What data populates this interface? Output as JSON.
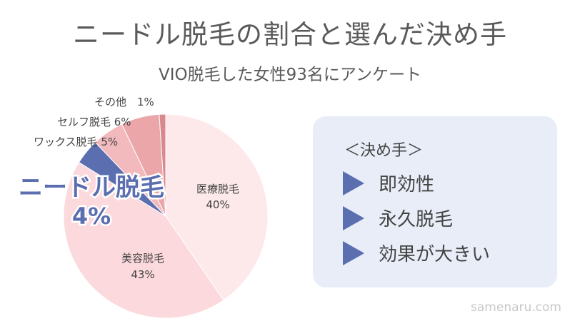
{
  "header": {
    "title": "ニードル脱毛の割合と選んだ決め手",
    "subtitle": "VIO脱毛した女性93名にアンケート"
  },
  "chart_data": {
    "type": "pie",
    "title": "ニードル脱毛の割合と選んだ決め手",
    "subtitle": "VIO脱毛した女性93名にアンケート",
    "slices": [
      {
        "name": "医療脱毛",
        "value": 40,
        "label": "40%",
        "color": "#fde9ea"
      },
      {
        "name": "美容脱毛",
        "value": 43,
        "label": "43%",
        "color": "#fcd9dc"
      },
      {
        "name": "ニードル脱毛",
        "value": 4,
        "label": "4%",
        "color": "#5b6fb0"
      },
      {
        "name": "ワックス脱毛",
        "value": 5,
        "label": "5%",
        "color": "#f3babd"
      },
      {
        "name": "セルフ脱毛",
        "value": 6,
        "label": "6%",
        "color": "#eba6a9"
      },
      {
        "name": "その他",
        "value": 1,
        "label": "1%",
        "color": "#d8898e"
      }
    ],
    "outer_labels": {
      "other": "その他　1%",
      "self": "セルフ脱毛 6%",
      "wax": "ワックス脱毛 5%"
    },
    "highlight": {
      "name": "ニードル脱毛",
      "value": "4%"
    }
  },
  "reasons": {
    "title": "＜決め手＞",
    "items": [
      "即効性",
      "永久脱毛",
      "効果が大きい"
    ]
  },
  "watermark": "samenaru.com",
  "colors": {
    "accent": "#5b6fb0",
    "panel": "#e8edf8"
  }
}
